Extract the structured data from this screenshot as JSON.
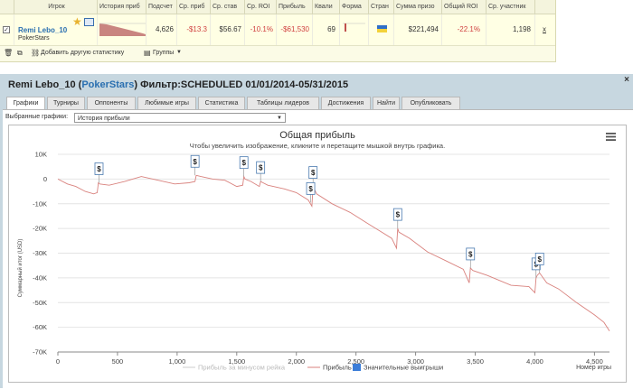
{
  "stats_table": {
    "headers": [
      "Игрок",
      "История приб",
      "Подсчет",
      "Ср. приб",
      "Ср. став",
      "Ср. ROI",
      "Прибыль",
      "Квали",
      "Форма",
      "Стран",
      "Сумма призо",
      "Общий ROI",
      "Ср. участник"
    ],
    "row": {
      "player": "Remi Lebo_10",
      "site": "PokerStars",
      "count": "4,626",
      "avg_profit": "-$13.3",
      "avg_stake": "$56.67",
      "avg_roi": "-10.1%",
      "profit": "-$61,530",
      "ability": "69",
      "prize_sum": "$221,494",
      "total_roi": "-22.1%",
      "avg_entrants": "1,198",
      "close": "x"
    },
    "toolbar": {
      "add_stats": "Добавить другую статистику",
      "groups": "Группы"
    }
  },
  "player_panel": {
    "name": "Remi Lebo_10",
    "site": "PokerStars",
    "filter": "Фильтр:SCHEDULED 01/01/2014-05/31/2015",
    "close": "×",
    "tabs": [
      "Графики",
      "Турниры",
      "Оппоненты",
      "Любимые игры",
      "Статистика",
      "Таблицы лидеров",
      "Достижения",
      "Найти",
      "Опубликовать"
    ],
    "active_tab": "Графики",
    "selected_label": "Выбранные графики:",
    "selected_value": "История прибыли"
  },
  "chart_data": {
    "type": "line",
    "title": "Общая прибыль",
    "subtitle": "Чтобы увеличить изображение, кликните и перетащите мышкой внутрь графика.",
    "xlabel": "Номер игры",
    "ylabel": "Суммарный итог (USD)",
    "xlim": [
      0,
      4626
    ],
    "ylim": [
      -70000,
      10000
    ],
    "x_ticks": [
      "0",
      "500",
      "1,000",
      "1,500",
      "2,000",
      "2,500",
      "3,000",
      "3,500",
      "4,000",
      "4,500"
    ],
    "y_ticks": [
      "10K",
      "0",
      "-10K",
      "-20K",
      "-30K",
      "-40K",
      "-50K",
      "-60K",
      "-70K"
    ],
    "legend": [
      "Прибыль за минусом рейка",
      "Прибыль",
      "Значительные выигрыши"
    ],
    "legend_position": "bottom",
    "series": [
      {
        "name": "Прибыль",
        "color": "#d9827e",
        "x": [
          0,
          80,
          150,
          230,
          300,
          330,
          340,
          350,
          430,
          560,
          700,
          840,
          980,
          1100,
          1150,
          1160,
          1200,
          1300,
          1400,
          1500,
          1550,
          1560,
          1570,
          1620,
          1690,
          1700,
          1760,
          1900,
          2000,
          2100,
          2130,
          2140,
          2160,
          2170,
          2300,
          2450,
          2600,
          2700,
          2800,
          2840,
          2850,
          2860,
          2950,
          3100,
          3250,
          3400,
          3450,
          3460,
          3480,
          3600,
          3800,
          3950,
          4000,
          4010,
          4020,
          4040,
          4100,
          4200,
          4350,
          4500,
          4580,
          4626
        ],
        "y": [
          0,
          -2000,
          -3000,
          -5000,
          -6000,
          -5500,
          -1500,
          -2000,
          -2500,
          -1000,
          1000,
          -500,
          -2000,
          -1500,
          -1000,
          1500,
          1000,
          0,
          -500,
          -3000,
          -2500,
          1000,
          0,
          -1000,
          -3000,
          -1000,
          -2500,
          -4000,
          -5500,
          -8500,
          -11000,
          -3000,
          -5000,
          -6000,
          -10000,
          -13500,
          -18000,
          -21000,
          -24000,
          -28000,
          -20000,
          -21500,
          -24000,
          -29500,
          -33000,
          -36500,
          -42000,
          -36000,
          -37000,
          -39000,
          -43000,
          -43500,
          -46000,
          -40000,
          -39000,
          -38000,
          -42000,
          -44500,
          -50000,
          -55000,
          -58000,
          -61500
        ]
      },
      {
        "name": "Прибыль за минусом рейка",
        "color": "#cccccc",
        "x": [],
        "y": []
      }
    ],
    "markers": [
      {
        "label": "$",
        "x": 345,
        "y": -1500
      },
      {
        "label": "$",
        "x": 1150,
        "y": 1500
      },
      {
        "label": "$",
        "x": 1560,
        "y": 1000
      },
      {
        "label": "$",
        "x": 1700,
        "y": -1000
      },
      {
        "label": "$",
        "x": 2140,
        "y": -3000
      },
      {
        "label": "$",
        "x": 2120,
        "y": -9500
      },
      {
        "label": "$",
        "x": 2850,
        "y": -20000
      },
      {
        "label": "$",
        "x": 3460,
        "y": -36000
      },
      {
        "label": "$",
        "x": 4010,
        "y": -40000
      },
      {
        "label": "$",
        "x": 4040,
        "y": -38000
      }
    ]
  },
  "colors": {
    "panel_bg": "#c7d7e0",
    "link": "#2a6fb0",
    "loss": "#d04040",
    "profit_line": "#d9827e",
    "marker_border": "#4a7ab0",
    "legend_big_wins": "#3b7dd8"
  }
}
